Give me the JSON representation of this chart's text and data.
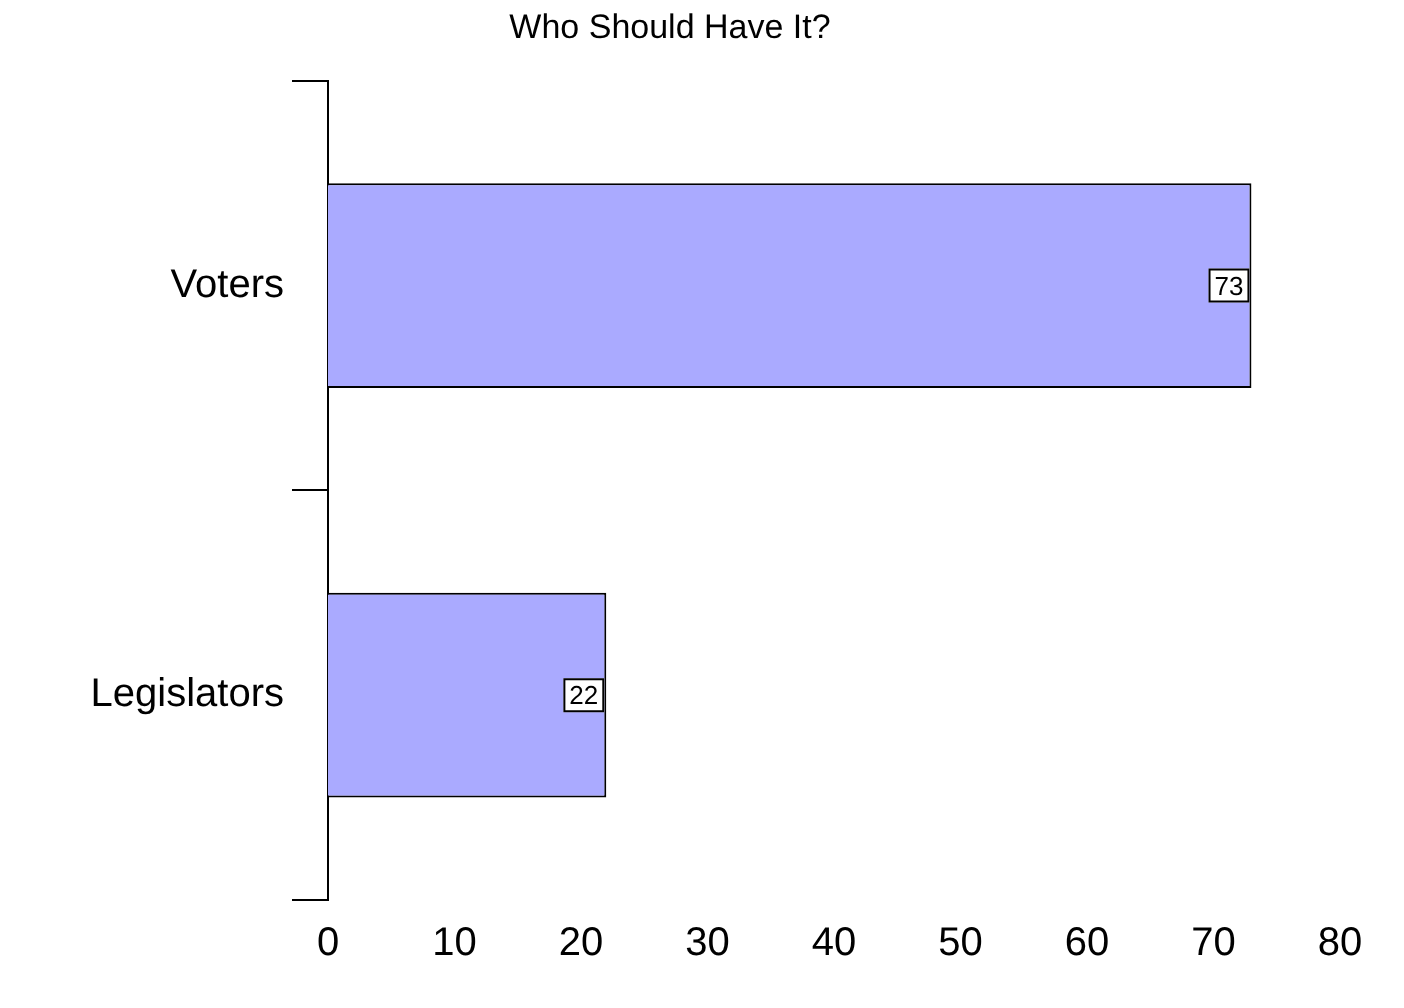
{
  "chart_data": {
    "type": "bar",
    "orientation": "horizontal",
    "title": "Who Should Have It?",
    "categories": [
      "Voters",
      "Legislators"
    ],
    "values": [
      73,
      22
    ],
    "color": "#aaaaff",
    "xlim": [
      0,
      80
    ],
    "xticks": [
      0,
      10,
      20,
      30,
      40,
      50,
      60,
      70,
      80
    ],
    "grid": false,
    "legend": false,
    "data_labels": true
  }
}
